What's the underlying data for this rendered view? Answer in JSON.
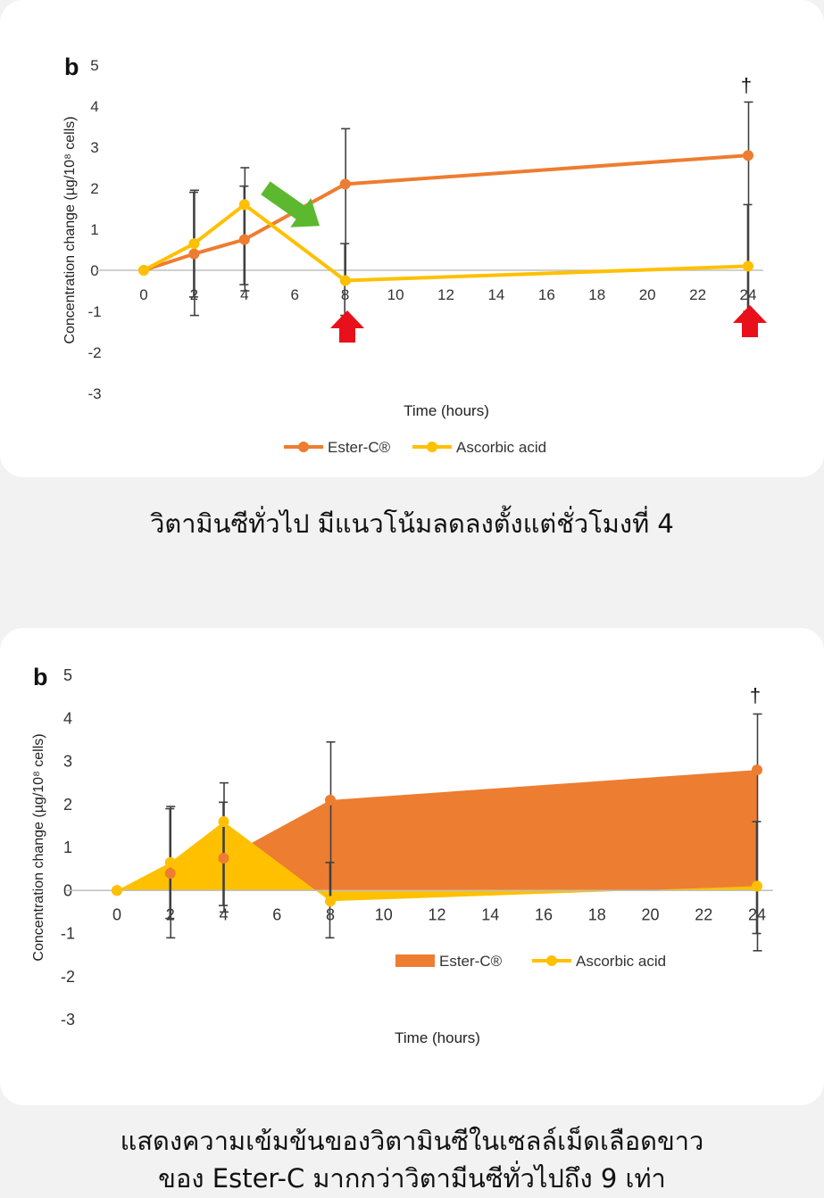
{
  "panels": [
    {
      "panel_letter": "b",
      "dagger": "†",
      "style": "line",
      "caption": "วิตามินซีทั่วไป มีแนวโน้มลดลงตั้งแต่ชั่วโมงที่ 4",
      "annotations": [
        "green-arrow-down",
        "red-arrow-up-at-8",
        "red-arrow-up-at-24"
      ]
    },
    {
      "panel_letter": "b",
      "dagger": "†",
      "style": "area",
      "caption_lines": [
        "แสดงความเข้มข้นของวิตามินซีในเซลล์เม็ดเลือดขาว",
        "ของ Ester-C มากกว่าวิตามีนซีทั่วไปถึง 9 เท่า"
      ]
    }
  ],
  "colors": {
    "ester_c": "#ed7d31",
    "ascorbic": "#ffc000",
    "green_arrow": "#5cb82e",
    "red_arrow": "#e8101a",
    "axis": "#bfbfbf",
    "error_bar": "#404040"
  },
  "chart_data": [
    {
      "type": "line",
      "xlabel": "Time (hours)",
      "ylabel": "Concentration change (µg/10⁸ cells)",
      "xticks": [
        0,
        2,
        4,
        6,
        8,
        10,
        12,
        14,
        16,
        18,
        20,
        22,
        24
      ],
      "yticks": [
        -3,
        -2,
        -1,
        0,
        1,
        2,
        3,
        4,
        5
      ],
      "xlim": [
        0,
        24
      ],
      "ylim": [
        -3,
        5
      ],
      "grid": false,
      "legend_position": "bottom-center",
      "series": [
        {
          "name": "Ester-C®",
          "x": [
            0,
            2,
            4,
            8,
            24
          ],
          "y": [
            0,
            0.4,
            0.75,
            2.1,
            2.8
          ],
          "error_high": [
            null,
            1.95,
            2.5,
            3.45,
            4.1
          ],
          "error_low": [
            null,
            -1.1,
            -0.5,
            -0.3,
            -1.4
          ]
        },
        {
          "name": "Ascorbic acid",
          "x": [
            0,
            2,
            4,
            8,
            24
          ],
          "y": [
            0,
            0.65,
            1.6,
            -0.25,
            0.1
          ],
          "error_high": [
            null,
            1.9,
            2.05,
            0.65,
            1.6
          ],
          "error_low": [
            null,
            -0.65,
            -0.35,
            -1.1,
            -1.0
          ]
        }
      ]
    },
    {
      "type": "area",
      "xlabel": "Time (hours)",
      "ylabel": "Concentration change (µg/10⁸ cells)",
      "xticks": [
        0,
        2,
        4,
        6,
        8,
        10,
        12,
        14,
        16,
        18,
        20,
        22,
        24
      ],
      "yticks": [
        -3,
        -2,
        -1,
        0,
        1,
        2,
        3,
        4,
        5
      ],
      "xlim": [
        0,
        24
      ],
      "ylim": [
        -3,
        5
      ],
      "grid": false,
      "legend_position": "bottom-right",
      "series": [
        {
          "name": "Ester-C®",
          "x": [
            0,
            2,
            4,
            8,
            24
          ],
          "y": [
            0,
            0.4,
            0.75,
            2.1,
            2.8
          ],
          "error_high": [
            null,
            1.95,
            2.5,
            3.45,
            4.1
          ],
          "error_low": [
            null,
            -1.1,
            -0.5,
            -0.3,
            -1.4
          ]
        },
        {
          "name": "Ascorbic acid",
          "x": [
            0,
            2,
            4,
            8,
            24
          ],
          "y": [
            0,
            0.65,
            1.6,
            -0.25,
            0.1
          ],
          "error_high": [
            null,
            1.9,
            2.05,
            0.65,
            1.6
          ],
          "error_low": [
            null,
            -0.65,
            -0.35,
            -1.1,
            -1.0
          ]
        }
      ]
    }
  ]
}
